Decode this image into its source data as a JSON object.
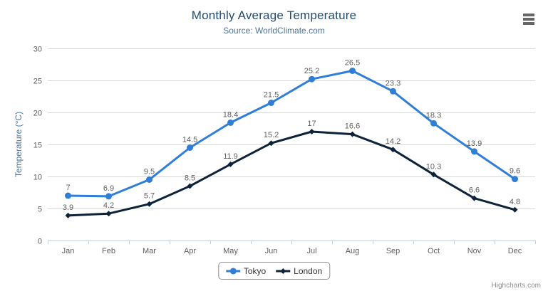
{
  "chart_data": {
    "type": "line",
    "title": "Monthly Average Temperature",
    "subtitle": "Source: WorldClimate.com",
    "categories": [
      "Jan",
      "Feb",
      "Mar",
      "Apr",
      "May",
      "Jun",
      "Jul",
      "Aug",
      "Sep",
      "Oct",
      "Nov",
      "Dec"
    ],
    "series": [
      {
        "name": "Tokyo",
        "color": "#2f7ed8",
        "marker": "circle",
        "values": [
          7,
          6.9,
          9.5,
          14.5,
          18.4,
          21.5,
          25.2,
          26.5,
          23.3,
          18.3,
          13.9,
          9.6
        ]
      },
      {
        "name": "London",
        "color": "#0d233a",
        "marker": "diamond",
        "values": [
          3.9,
          4.2,
          5.7,
          8.5,
          11.9,
          15.2,
          17,
          16.6,
          14.2,
          10.3,
          6.6,
          4.8
        ]
      }
    ],
    "xlabel": "",
    "ylabel": "Temperature (°C)",
    "ylim": [
      0,
      30
    ],
    "ytick_interval": 5,
    "grid": true,
    "legend_position": "bottom",
    "data_labels": true
  },
  "colors": {
    "grid": "#D8D8D8",
    "axis_line": "#C0D0E0",
    "axis_label": "#606060",
    "title": "#274b6d",
    "subtitle": "#4d759e",
    "legend_border": "#909090",
    "menu_icon": "#666666"
  },
  "icons": {
    "export_menu": "hamburger-icon"
  },
  "credits": {
    "label": "Highcharts.com"
  }
}
